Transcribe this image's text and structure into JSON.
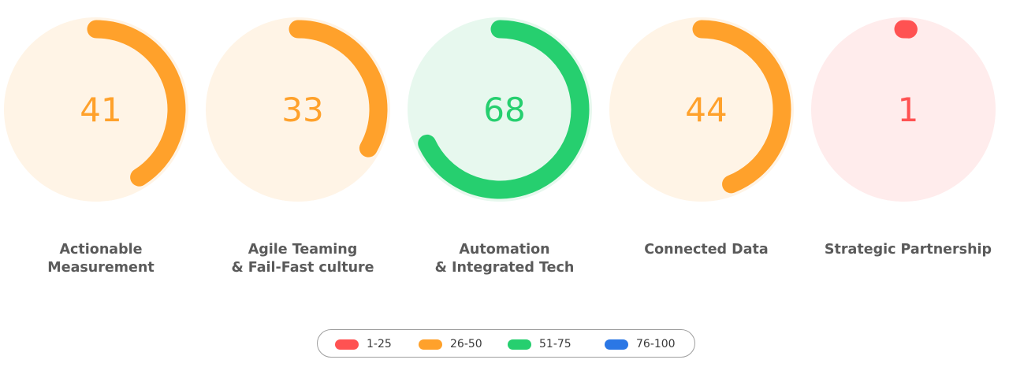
{
  "colors": {
    "low": "#ff5252",
    "mid_low": "#ffa12b",
    "mid_high": "#26cf6f",
    "high": "#2b77e5",
    "label_text": "#5a5a5a"
  },
  "chart_data": {
    "type": "radial-gauge",
    "max": 100,
    "gauges": [
      {
        "label": [
          "Actionable",
          "Measurement"
        ],
        "value": 41,
        "value_text": "41",
        "color": "#ffa12b",
        "track": "#fff4e6"
      },
      {
        "label": [
          "Agile Teaming",
          "& Fail-Fast culture"
        ],
        "value": 33,
        "value_text": "33",
        "color": "#ffa12b",
        "track": "#fff4e6"
      },
      {
        "label": [
          "Automation",
          "& Integrated Tech"
        ],
        "value": 68,
        "value_text": "68",
        "color": "#26cf6f",
        "track": "#e7f8ee"
      },
      {
        "label": [
          "Connected Data"
        ],
        "value": 44,
        "value_text": "44",
        "color": "#ffa12b",
        "track": "#fff4e6"
      },
      {
        "label": [
          "Strategic Partnership"
        ],
        "value": 1,
        "value_text": "1",
        "color": "#ff5252",
        "track": "#ffecec"
      }
    ],
    "legend": [
      {
        "label": "1-25",
        "color": "#ff5252"
      },
      {
        "label": "26-50",
        "color": "#ffa12b"
      },
      {
        "label": "51-75",
        "color": "#26cf6f"
      },
      {
        "label": "76-100",
        "color": "#2b77e5"
      }
    ],
    "legend_position": "bottom-center"
  }
}
